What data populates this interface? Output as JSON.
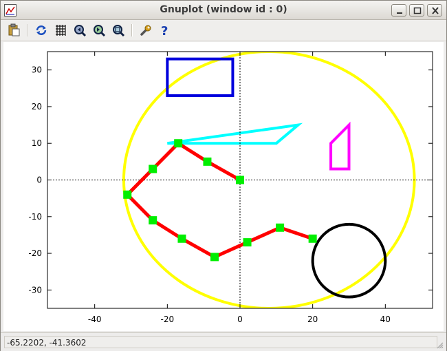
{
  "window": {
    "title": "Gnuplot (window id : 0)"
  },
  "toolbar": {
    "buttons": [
      {
        "name": "copy-to-clipboard",
        "icon": "clipboard-icon"
      },
      {
        "name": "replot",
        "icon": "replot-icon"
      },
      {
        "name": "toggle-grid",
        "icon": "grid-icon"
      },
      {
        "name": "zoom-previous",
        "icon": "zoom-prev-icon"
      },
      {
        "name": "zoom-next",
        "icon": "zoom-next-icon"
      },
      {
        "name": "autoscale",
        "icon": "autoscale-icon"
      },
      {
        "name": "options",
        "icon": "wrench-icon"
      },
      {
        "name": "help",
        "icon": "help-icon"
      }
    ]
  },
  "status": {
    "coords": "-65.2202, -41.3602"
  },
  "colors": {
    "ellipse": "#ffff00",
    "rect": "#0000dd",
    "poly_cyan": "#00ffff",
    "poly_magenta": "#ff00ff",
    "line": "#ff0000",
    "points": "#00ee00",
    "circle": "#000000"
  },
  "chart_data": {
    "type": "line",
    "xlim": [
      -53,
      53
    ],
    "ylim": [
      -35,
      35
    ],
    "x_ticks": [
      -40,
      -20,
      0,
      20,
      40
    ],
    "y_ticks": [
      30,
      20,
      10,
      0,
      -10,
      -20,
      -30
    ],
    "x_tick_labels": [
      "-40",
      "-20",
      "0",
      "20",
      "40"
    ],
    "y_tick_labels": [
      "30",
      "20",
      "10",
      "0",
      "-10",
      "-20",
      "-30"
    ],
    "zero_axes": true,
    "series": [
      {
        "style": "linespoints",
        "points": [
          [
            0,
            0
          ],
          [
            -9,
            5
          ],
          [
            -17,
            10
          ],
          [
            -24,
            3
          ],
          [
            -31,
            -4
          ],
          [
            -24,
            -11
          ],
          [
            -16,
            -16
          ],
          [
            -7,
            -21
          ],
          [
            2,
            -17
          ],
          [
            11,
            -13
          ],
          [
            20,
            -16
          ]
        ]
      }
    ],
    "objects": [
      {
        "type": "ellipse",
        "center": [
          8,
          0
        ],
        "rx": 40,
        "ry": 35
      },
      {
        "type": "rect",
        "from": [
          -20,
          23
        ],
        "to": [
          -2,
          33
        ]
      },
      {
        "type": "polygon",
        "color": "cyan",
        "points": [
          [
            -20,
            10
          ],
          [
            10,
            10
          ],
          [
            16,
            15
          ]
        ]
      },
      {
        "type": "polygon",
        "color": "magenta",
        "points": [
          [
            25,
            3
          ],
          [
            30,
            3
          ],
          [
            30,
            15
          ],
          [
            25,
            10
          ]
        ]
      },
      {
        "type": "circle",
        "center": [
          30,
          -22
        ],
        "r": 10
      }
    ]
  }
}
